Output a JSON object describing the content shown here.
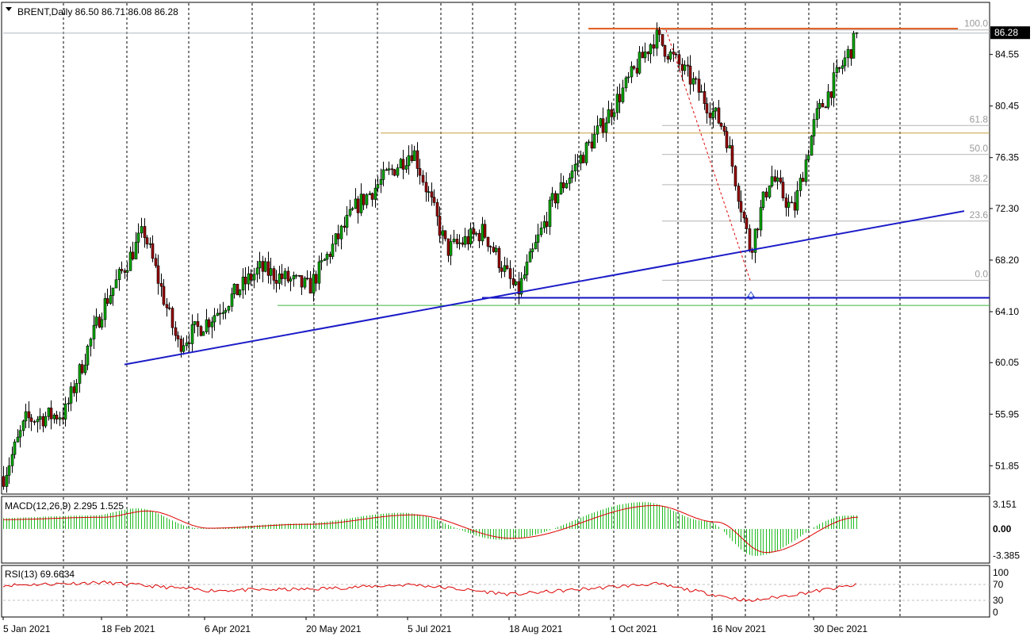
{
  "header": {
    "symbol_line": "BRENT,Daily  86.50 86.71 86.08 86.28"
  },
  "price_axis": {
    "ticks": [
      "84.55",
      "80.45",
      "76.35",
      "72.30",
      "68.20",
      "64.10",
      "60.05",
      "55.95",
      "51.85"
    ],
    "tick_values": [
      84.55,
      80.45,
      76.35,
      72.3,
      68.2,
      64.1,
      60.05,
      55.95,
      51.85
    ],
    "last_price_label": "86.28",
    "last_price": 86.28
  },
  "time_axis": {
    "labels": [
      "5 Jan 2021",
      "18 Feb 2021",
      "6 Apr 2021",
      "20 May 2021",
      "5 Jul 2021",
      "18 Aug 2021",
      "1 Oct 2021",
      "16 Nov 2021",
      "30 Dec 2021"
    ]
  },
  "fibonacci": {
    "levels": [
      {
        "label": "100.0",
        "value": 86.5
      },
      {
        "label": "61.8",
        "value": 78.9
      },
      {
        "label": "50.0",
        "value": 76.6
      },
      {
        "label": "38.2",
        "value": 74.2
      },
      {
        "label": "23.6",
        "value": 71.3
      },
      {
        "label": "0.0",
        "value": 66.6
      }
    ]
  },
  "macd": {
    "label": "MACD(12,26,9) 2.295 1.525",
    "ticks": [
      "3.151",
      "0.00",
      "-3.385"
    ],
    "tick_values": [
      3.151,
      0.0,
      -3.385
    ]
  },
  "rsi": {
    "label": "RSI(13) 69.6634",
    "ticks": [
      "100",
      "70",
      "30",
      "0"
    ],
    "tick_values": [
      100,
      70,
      30,
      0
    ]
  },
  "colors": {
    "bull_candle": "#00aa00",
    "bear_candle": "#990000",
    "grid": "#000000",
    "trendline": "#1c1cc8",
    "resistance": "#e25a1c",
    "mid_resistance": "#c8a040",
    "support_green": "#3cb43c",
    "macd_hist": "#22bb22",
    "macd_signal": "#dd0000",
    "rsi_line": "#dd0000"
  },
  "chart_data": {
    "type": "candlestick",
    "title": "BRENT,Daily",
    "ohlc_last": {
      "open": 86.5,
      "high": 86.71,
      "low": 86.08,
      "close": 86.28
    },
    "ylim": [
      49.5,
      88.0
    ],
    "grid": "vertical dashed",
    "price_path_monthly_approx": [
      {
        "date": "2021-01-05",
        "value": 51.0
      },
      {
        "date": "2021-01-15",
        "value": 55.5
      },
      {
        "date": "2021-02-01",
        "value": 56.0
      },
      {
        "date": "2021-02-18",
        "value": 64.5
      },
      {
        "date": "2021-03-08",
        "value": 70.5
      },
      {
        "date": "2021-03-23",
        "value": 61.5
      },
      {
        "date": "2021-04-06",
        "value": 63.5
      },
      {
        "date": "2021-04-28",
        "value": 67.5
      },
      {
        "date": "2021-05-20",
        "value": 66.0
      },
      {
        "date": "2021-06-10",
        "value": 72.5
      },
      {
        "date": "2021-07-05",
        "value": 77.0
      },
      {
        "date": "2021-07-20",
        "value": 69.0
      },
      {
        "date": "2021-08-05",
        "value": 70.5
      },
      {
        "date": "2021-08-20",
        "value": 65.5
      },
      {
        "date": "2021-09-05",
        "value": 73.0
      },
      {
        "date": "2021-09-25",
        "value": 78.5
      },
      {
        "date": "2021-10-20",
        "value": 86.0
      },
      {
        "date": "2021-11-05",
        "value": 82.5
      },
      {
        "date": "2021-11-20",
        "value": 78.5
      },
      {
        "date": "2021-12-01",
        "value": 69.0
      },
      {
        "date": "2021-12-10",
        "value": 75.0
      },
      {
        "date": "2021-12-20",
        "value": 72.0
      },
      {
        "date": "2021-12-30",
        "value": 79.5
      },
      {
        "date": "2022-01-18",
        "value": 86.3
      }
    ],
    "horizontal_lines": [
      {
        "value": 86.6,
        "name": "resistance"
      },
      {
        "value": 78.3,
        "name": "mid resistance"
      },
      {
        "value": 65.2,
        "name": "support"
      },
      {
        "value": 64.6,
        "name": "support green"
      }
    ],
    "trendline": {
      "from": {
        "date": "2021-02-18",
        "value": 59.9
      },
      "to": {
        "date": "2022-02-20",
        "value": 72.1
      }
    },
    "macd_signal_approx": [
      {
        "date": "2021-01-05",
        "value": 1.2
      },
      {
        "date": "2021-02-18",
        "value": 1.5
      },
      {
        "date": "2021-03-10",
        "value": 2.3
      },
      {
        "date": "2021-04-06",
        "value": 0.1
      },
      {
        "date": "2021-05-20",
        "value": 0.6
      },
      {
        "date": "2021-07-05",
        "value": 1.8
      },
      {
        "date": "2021-08-18",
        "value": -1.2
      },
      {
        "date": "2021-10-20",
        "value": 3.0
      },
      {
        "date": "2021-11-16",
        "value": 0.9
      },
      {
        "date": "2021-12-08",
        "value": -3.0
      },
      {
        "date": "2022-01-18",
        "value": 1.5
      }
    ],
    "rsi_approx": [
      {
        "date": "2021-01-05",
        "value": 68
      },
      {
        "date": "2021-02-18",
        "value": 75
      },
      {
        "date": "2021-04-06",
        "value": 55
      },
      {
        "date": "2021-05-20",
        "value": 58
      },
      {
        "date": "2021-07-05",
        "value": 70
      },
      {
        "date": "2021-08-18",
        "value": 45
      },
      {
        "date": "2021-10-20",
        "value": 72
      },
      {
        "date": "2021-12-01",
        "value": 28
      },
      {
        "date": "2022-01-18",
        "value": 69.7
      }
    ]
  }
}
